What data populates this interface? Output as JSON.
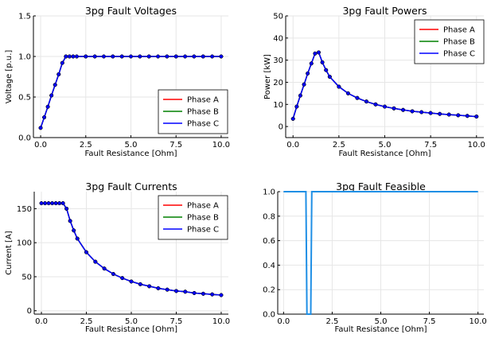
{
  "chart_data": [
    {
      "type": "line",
      "title": "3pg Fault Voltages",
      "xlabel": "Fault Resistance [Ohm]",
      "ylabel": "Voltage [p.u.]",
      "xlim": [
        -0.4,
        10.4
      ],
      "ylim": [
        0,
        1.5
      ],
      "xticks": [
        0,
        2.5,
        5,
        7.5,
        10
      ],
      "xtick_labels": [
        "0.0",
        "2.5",
        "5.0",
        "7.5",
        "10.0"
      ],
      "yticks": [
        0,
        0.5,
        1,
        1.5
      ],
      "ytick_labels": [
        "0.0",
        "0.5",
        "1.0",
        "1.5"
      ],
      "grid": true,
      "markers": true,
      "legend": "bottom-right",
      "x": [
        0,
        0.2,
        0.4,
        0.6,
        0.8,
        1.0,
        1.2,
        1.4,
        1.6,
        1.8,
        2.0,
        2.5,
        3.0,
        3.5,
        4.0,
        4.5,
        5.0,
        5.5,
        6.0,
        6.5,
        7.0,
        7.5,
        8.0,
        8.5,
        9.0,
        9.5,
        10.0
      ],
      "series": [
        {
          "name": "Phase A",
          "color": "#ff0000",
          "values": [
            0.12,
            0.25,
            0.38,
            0.52,
            0.65,
            0.78,
            0.92,
            1.0,
            1.0,
            1.0,
            1.0,
            1.0,
            1.0,
            1.0,
            1.0,
            1.0,
            1.0,
            1.0,
            1.0,
            1.0,
            1.0,
            1.0,
            1.0,
            1.0,
            1.0,
            1.0,
            1.0
          ]
        },
        {
          "name": "Phase B",
          "color": "#008000",
          "values": [
            0.12,
            0.25,
            0.38,
            0.52,
            0.65,
            0.78,
            0.92,
            1.0,
            1.0,
            1.0,
            1.0,
            1.0,
            1.0,
            1.0,
            1.0,
            1.0,
            1.0,
            1.0,
            1.0,
            1.0,
            1.0,
            1.0,
            1.0,
            1.0,
            1.0,
            1.0,
            1.0
          ]
        },
        {
          "name": "Phase C",
          "color": "#0000ff",
          "values": [
            0.12,
            0.25,
            0.38,
            0.52,
            0.65,
            0.78,
            0.92,
            1.0,
            1.0,
            1.0,
            1.0,
            1.0,
            1.0,
            1.0,
            1.0,
            1.0,
            1.0,
            1.0,
            1.0,
            1.0,
            1.0,
            1.0,
            1.0,
            1.0,
            1.0,
            1.0,
            1.0
          ]
        }
      ]
    },
    {
      "type": "line",
      "title": "3pg Fault Powers",
      "xlabel": "Fault Resistance [Ohm]",
      "ylabel": "Power [kW]",
      "xlim": [
        -0.4,
        10.4
      ],
      "ylim": [
        -5,
        50
      ],
      "xticks": [
        0,
        2.5,
        5,
        7.5,
        10
      ],
      "xtick_labels": [
        "0.0",
        "2.5",
        "5.0",
        "7.5",
        "10.0"
      ],
      "yticks": [
        0,
        10,
        20,
        30,
        40,
        50
      ],
      "ytick_labels": [
        "0",
        "10",
        "20",
        "30",
        "40",
        "50"
      ],
      "grid": true,
      "markers": true,
      "legend": "top-right",
      "x": [
        0,
        0.2,
        0.4,
        0.6,
        0.8,
        1.0,
        1.2,
        1.4,
        1.6,
        1.8,
        2.0,
        2.5,
        3.0,
        3.5,
        4.0,
        4.5,
        5.0,
        5.5,
        6.0,
        6.5,
        7.0,
        7.5,
        8.0,
        8.5,
        9.0,
        9.5,
        10.0
      ],
      "series": [
        {
          "name": "Phase A",
          "color": "#ff0000",
          "values": [
            3.5,
            9,
            14,
            19,
            24,
            28.5,
            33,
            33.5,
            29,
            25.5,
            22.5,
            18,
            15,
            12.9,
            11.3,
            10,
            9,
            8.2,
            7.5,
            6.9,
            6.5,
            6.1,
            5.7,
            5.4,
            5.1,
            4.8,
            4.5
          ]
        },
        {
          "name": "Phase B",
          "color": "#008000",
          "values": [
            3.5,
            9,
            14,
            19,
            24,
            28.5,
            33,
            33.5,
            29,
            25.5,
            22.5,
            18,
            15,
            12.9,
            11.3,
            10,
            9,
            8.2,
            7.5,
            6.9,
            6.5,
            6.1,
            5.7,
            5.4,
            5.1,
            4.8,
            4.5
          ]
        },
        {
          "name": "Phase C",
          "color": "#0000ff",
          "values": [
            3.5,
            9,
            14,
            19,
            24,
            28.5,
            33,
            33.5,
            29,
            25.5,
            22.5,
            18,
            15,
            12.9,
            11.3,
            10,
            9,
            8.2,
            7.5,
            6.9,
            6.5,
            6.1,
            5.7,
            5.4,
            5.1,
            4.8,
            4.5
          ]
        }
      ]
    },
    {
      "type": "line",
      "title": "3pg Fault Currents",
      "xlabel": "Fault Resistance [Ohm]",
      "ylabel": "Current [A]",
      "xlim": [
        -0.4,
        10.4
      ],
      "ylim": [
        -5,
        175
      ],
      "xticks": [
        0,
        2.5,
        5,
        7.5,
        10
      ],
      "xtick_labels": [
        "0.0",
        "2.5",
        "5.0",
        "7.5",
        "10.0"
      ],
      "yticks": [
        0,
        50,
        100,
        150
      ],
      "ytick_labels": [
        "0",
        "50",
        "100",
        "150"
      ],
      "grid": true,
      "markers": true,
      "legend": "top-right",
      "x": [
        0,
        0.2,
        0.4,
        0.6,
        0.8,
        1.0,
        1.2,
        1.4,
        1.6,
        1.8,
        2.0,
        2.5,
        3.0,
        3.5,
        4.0,
        4.5,
        5.0,
        5.5,
        6.0,
        6.5,
        7.0,
        7.5,
        8.0,
        8.5,
        9.0,
        9.5,
        10.0
      ],
      "series": [
        {
          "name": "Phase A",
          "color": "#ff0000",
          "values": [
            158,
            158,
            158,
            158,
            158,
            158,
            158,
            150,
            132,
            118,
            106,
            86,
            72,
            62,
            54,
            48,
            43,
            39,
            36,
            33,
            31,
            29,
            28,
            26,
            25,
            24,
            23
          ]
        },
        {
          "name": "Phase B",
          "color": "#008000",
          "values": [
            158,
            158,
            158,
            158,
            158,
            158,
            158,
            150,
            132,
            118,
            106,
            86,
            72,
            62,
            54,
            48,
            43,
            39,
            36,
            33,
            31,
            29,
            28,
            26,
            25,
            24,
            23
          ]
        },
        {
          "name": "Phase C",
          "color": "#0000ff",
          "values": [
            158,
            158,
            158,
            158,
            158,
            158,
            158,
            150,
            132,
            118,
            106,
            86,
            72,
            62,
            54,
            48,
            43,
            39,
            36,
            33,
            31,
            29,
            28,
            26,
            25,
            24,
            23
          ]
        }
      ]
    },
    {
      "type": "line",
      "title": "3pg Fault Feasible",
      "xlabel": "Fault Resistance [Ohm]",
      "ylabel": "",
      "xlim": [
        -0.3,
        10.3
      ],
      "ylim": [
        0,
        1
      ],
      "xticks": [
        0,
        2.5,
        5,
        7.5,
        10
      ],
      "xtick_labels": [
        "0.0",
        "2.5",
        "5.0",
        "7.5",
        "10.0"
      ],
      "yticks": [
        0,
        0.2,
        0.4,
        0.6,
        0.8,
        1.0
      ],
      "ytick_labels": [
        "0.0",
        "0.2",
        "0.4",
        "0.6",
        "0.8",
        "1.0"
      ],
      "grid": true,
      "markers": false,
      "legend": "none",
      "x": [
        0,
        1.15,
        1.2,
        1.4,
        1.45,
        10
      ],
      "series": [
        {
          "color": "#1f8fe5",
          "values": [
            1,
            1,
            0,
            0,
            1,
            1
          ]
        }
      ]
    }
  ]
}
